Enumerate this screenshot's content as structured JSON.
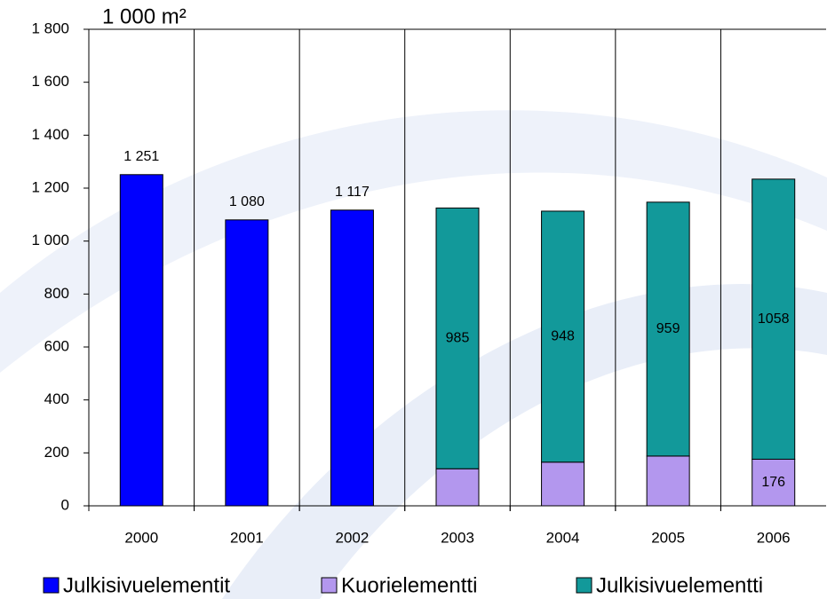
{
  "chart_data": {
    "type": "stacked_bar",
    "y_label": "1 000 m²",
    "categories": [
      "2000",
      "2001",
      "2002",
      "2003",
      "2004",
      "2005",
      "2006"
    ],
    "series": [
      {
        "name": "Julkisivuelementit",
        "color": "#0000ff",
        "values": [
          1251,
          1080,
          1117,
          null,
          null,
          null,
          null
        ],
        "value_labels": [
          "1 251",
          "1 080",
          "1 117",
          null,
          null,
          null,
          null
        ]
      },
      {
        "name": "Kuorielementti",
        "color": "#b397ee",
        "values": [
          null,
          null,
          null,
          140,
          165,
          188,
          176
        ],
        "value_labels": [
          null,
          null,
          null,
          null,
          null,
          null,
          "176"
        ]
      },
      {
        "name": "Julkisivuelementti",
        "color": "#12999a",
        "values": [
          null,
          null,
          null,
          985,
          948,
          959,
          1058
        ],
        "value_labels": [
          null,
          null,
          null,
          "985",
          "948",
          "959",
          "1058"
        ]
      }
    ],
    "ylim": [
      0,
      1800
    ],
    "yticks": [
      0,
      200,
      400,
      600,
      800,
      {
        "value": 1000,
        "label": "1 000"
      },
      {
        "value": 1200,
        "label": "1 200"
      },
      {
        "value": 1400,
        "label": "1 400"
      },
      {
        "value": 1600,
        "label": "1 600"
      },
      {
        "value": 1800,
        "label": "1 800"
      }
    ],
    "grid": "x",
    "legend": "bottom"
  }
}
